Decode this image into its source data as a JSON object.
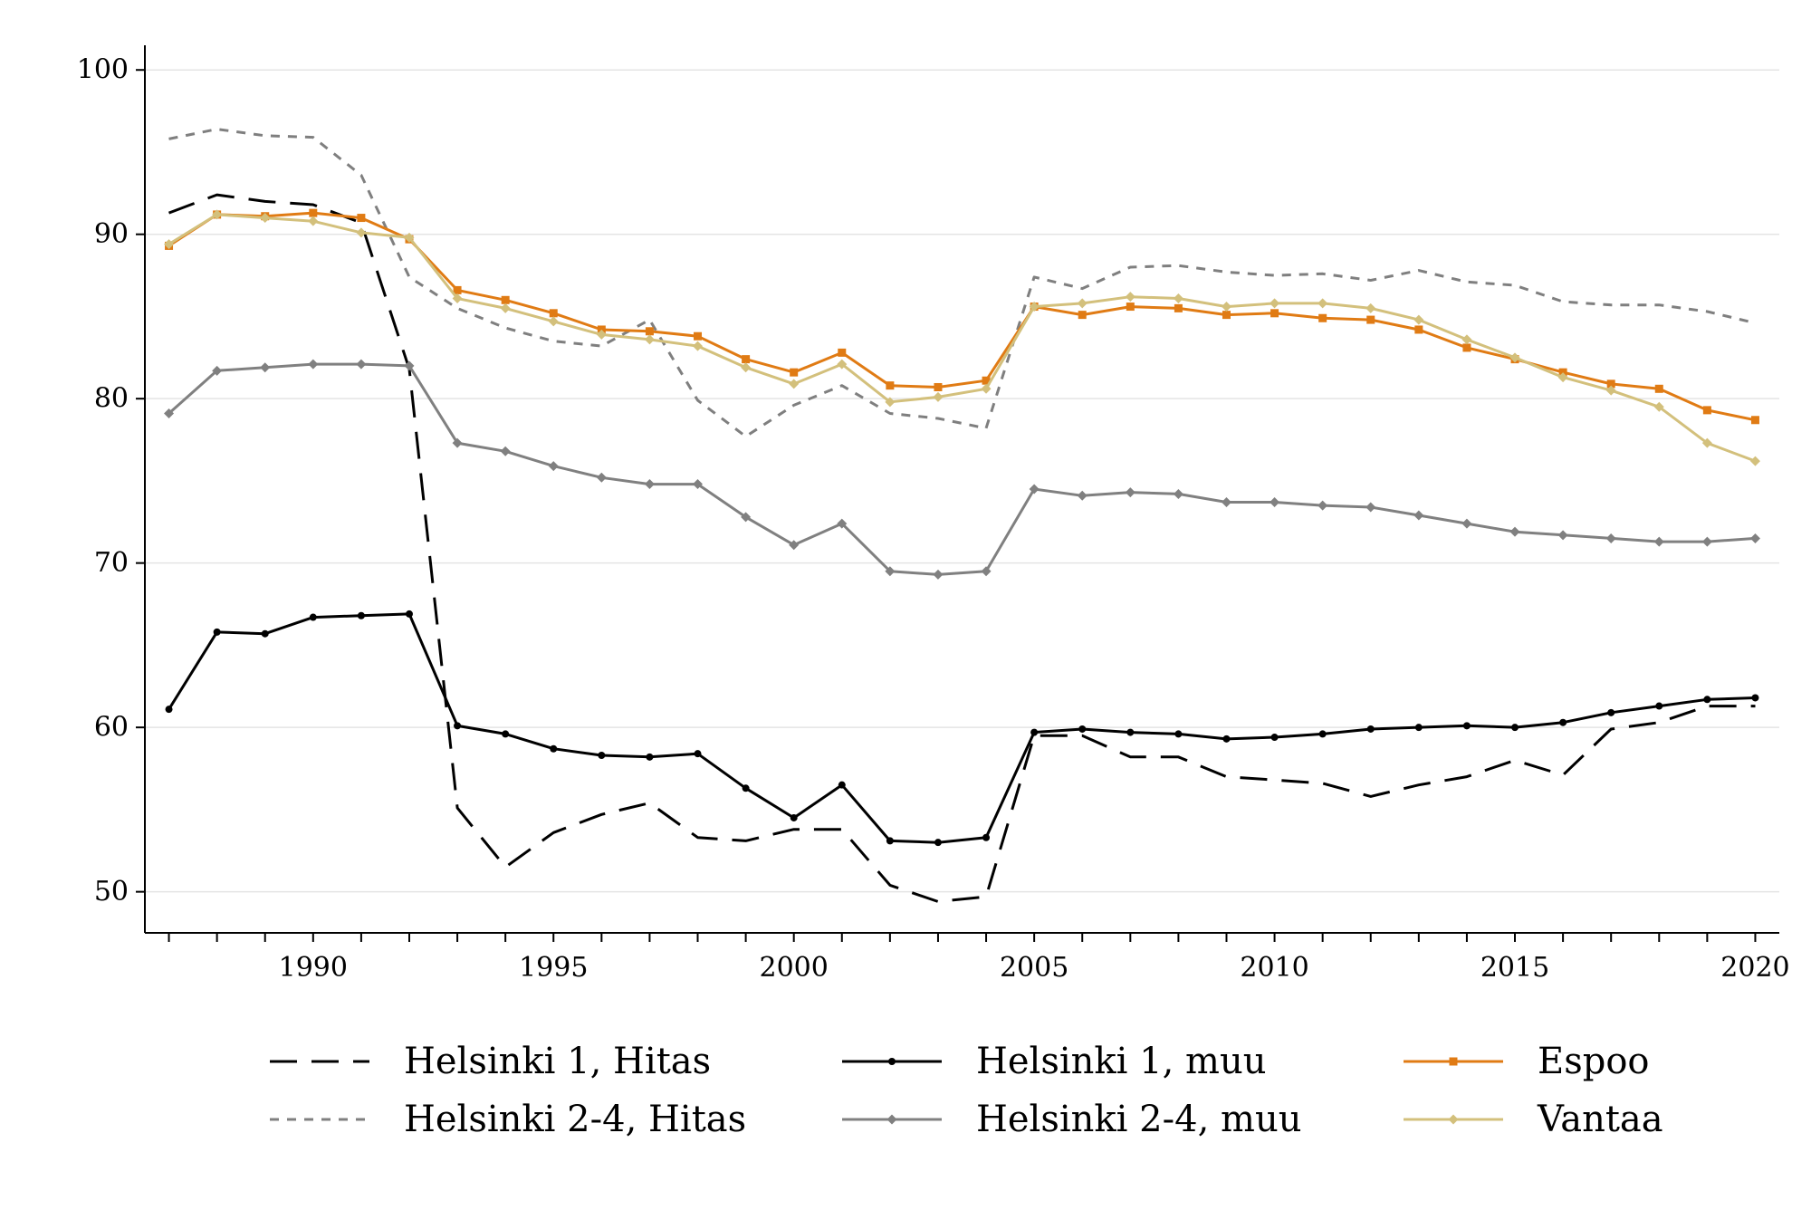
{
  "chart_data": {
    "type": "line",
    "title": "",
    "xlabel": "",
    "ylabel": "",
    "xlim": [
      1986.5,
      2020.5
    ],
    "ylim": [
      47.5,
      101.5
    ],
    "xticks": [
      1990,
      1995,
      2000,
      2005,
      2010,
      2015,
      2020
    ],
    "yticks": [
      50,
      60,
      70,
      80,
      90,
      100
    ],
    "x": [
      1987,
      1988,
      1989,
      1990,
      1991,
      1992,
      1993,
      1994,
      1995,
      1996,
      1997,
      1998,
      1999,
      2000,
      2001,
      2002,
      2003,
      2004,
      2005,
      2006,
      2007,
      2008,
      2009,
      2010,
      2011,
      2012,
      2013,
      2014,
      2015,
      2016,
      2017,
      2018,
      2019,
      2020
    ],
    "grid": "horizontal",
    "legend_position": "bottom",
    "series": [
      {
        "name": "Helsinki 1, Hitas",
        "color": "#000000",
        "style": "long-dash",
        "marker": "none",
        "values": [
          91.3,
          92.4,
          92.0,
          91.8,
          90.7,
          81.8,
          55.1,
          51.5,
          53.6,
          54.7,
          55.4,
          53.3,
          53.1,
          53.8,
          53.8,
          50.4,
          49.4,
          49.7,
          59.5,
          59.5,
          58.2,
          58.2,
          57.0,
          56.8,
          56.6,
          55.8,
          56.5,
          57.0,
          58.0,
          57.1,
          59.9,
          60.3,
          61.3,
          61.3
        ]
      },
      {
        "name": "Helsinki 2-4, Hitas",
        "color": "#7f7f7f",
        "style": "short-dash",
        "marker": "none",
        "values": [
          95.8,
          96.4,
          96.0,
          95.9,
          93.6,
          87.4,
          85.5,
          84.3,
          83.5,
          83.2,
          84.8,
          79.9,
          77.7,
          79.6,
          80.8,
          79.1,
          78.8,
          78.2,
          87.4,
          86.7,
          88.0,
          88.1,
          87.7,
          87.5,
          87.6,
          87.2,
          87.8,
          87.1,
          86.9,
          85.9,
          85.7,
          85.7,
          85.3,
          84.6
        ]
      },
      {
        "name": "Helsinki 1, muu",
        "color": "#000000",
        "style": "solid",
        "marker": "circle",
        "values": [
          61.1,
          65.8,
          65.7,
          66.7,
          66.8,
          66.9,
          60.1,
          59.6,
          58.7,
          58.3,
          58.2,
          58.4,
          56.3,
          54.5,
          56.5,
          53.1,
          53.0,
          53.3,
          59.7,
          59.9,
          59.7,
          59.6,
          59.3,
          59.4,
          59.6,
          59.9,
          60.0,
          60.1,
          60.0,
          60.3,
          60.9,
          61.3,
          61.7,
          61.8
        ]
      },
      {
        "name": "Helsinki 2-4, muu",
        "color": "#808080",
        "style": "solid",
        "marker": "diamond",
        "values": [
          79.1,
          81.7,
          81.9,
          82.1,
          82.1,
          82.0,
          77.3,
          76.8,
          75.9,
          75.2,
          74.8,
          74.8,
          72.8,
          71.1,
          72.4,
          69.5,
          69.3,
          69.5,
          74.5,
          74.1,
          74.3,
          74.2,
          73.7,
          73.7,
          73.5,
          73.4,
          72.9,
          72.4,
          71.9,
          71.7,
          71.5,
          71.3,
          71.3,
          71.5
        ]
      },
      {
        "name": "Espoo",
        "color": "#e07b14",
        "style": "solid",
        "marker": "square",
        "values": [
          89.3,
          91.2,
          91.1,
          91.3,
          91.0,
          89.7,
          86.6,
          86.0,
          85.2,
          84.2,
          84.1,
          83.8,
          82.4,
          81.6,
          82.8,
          80.8,
          80.7,
          81.1,
          85.6,
          85.1,
          85.6,
          85.5,
          85.1,
          85.2,
          84.9,
          84.8,
          84.2,
          83.1,
          82.4,
          81.6,
          80.9,
          80.6,
          79.3,
          78.7
        ]
      },
      {
        "name": "Vantaa",
        "color": "#d3c07c",
        "style": "solid",
        "marker": "diamond",
        "values": [
          89.4,
          91.2,
          91.0,
          90.8,
          90.1,
          89.8,
          86.1,
          85.5,
          84.7,
          83.9,
          83.6,
          83.2,
          81.9,
          80.9,
          82.1,
          79.8,
          80.1,
          80.6,
          85.6,
          85.8,
          86.2,
          86.1,
          85.6,
          85.8,
          85.8,
          85.5,
          84.8,
          83.6,
          82.5,
          81.3,
          80.5,
          79.5,
          77.3,
          76.2
        ]
      }
    ]
  }
}
